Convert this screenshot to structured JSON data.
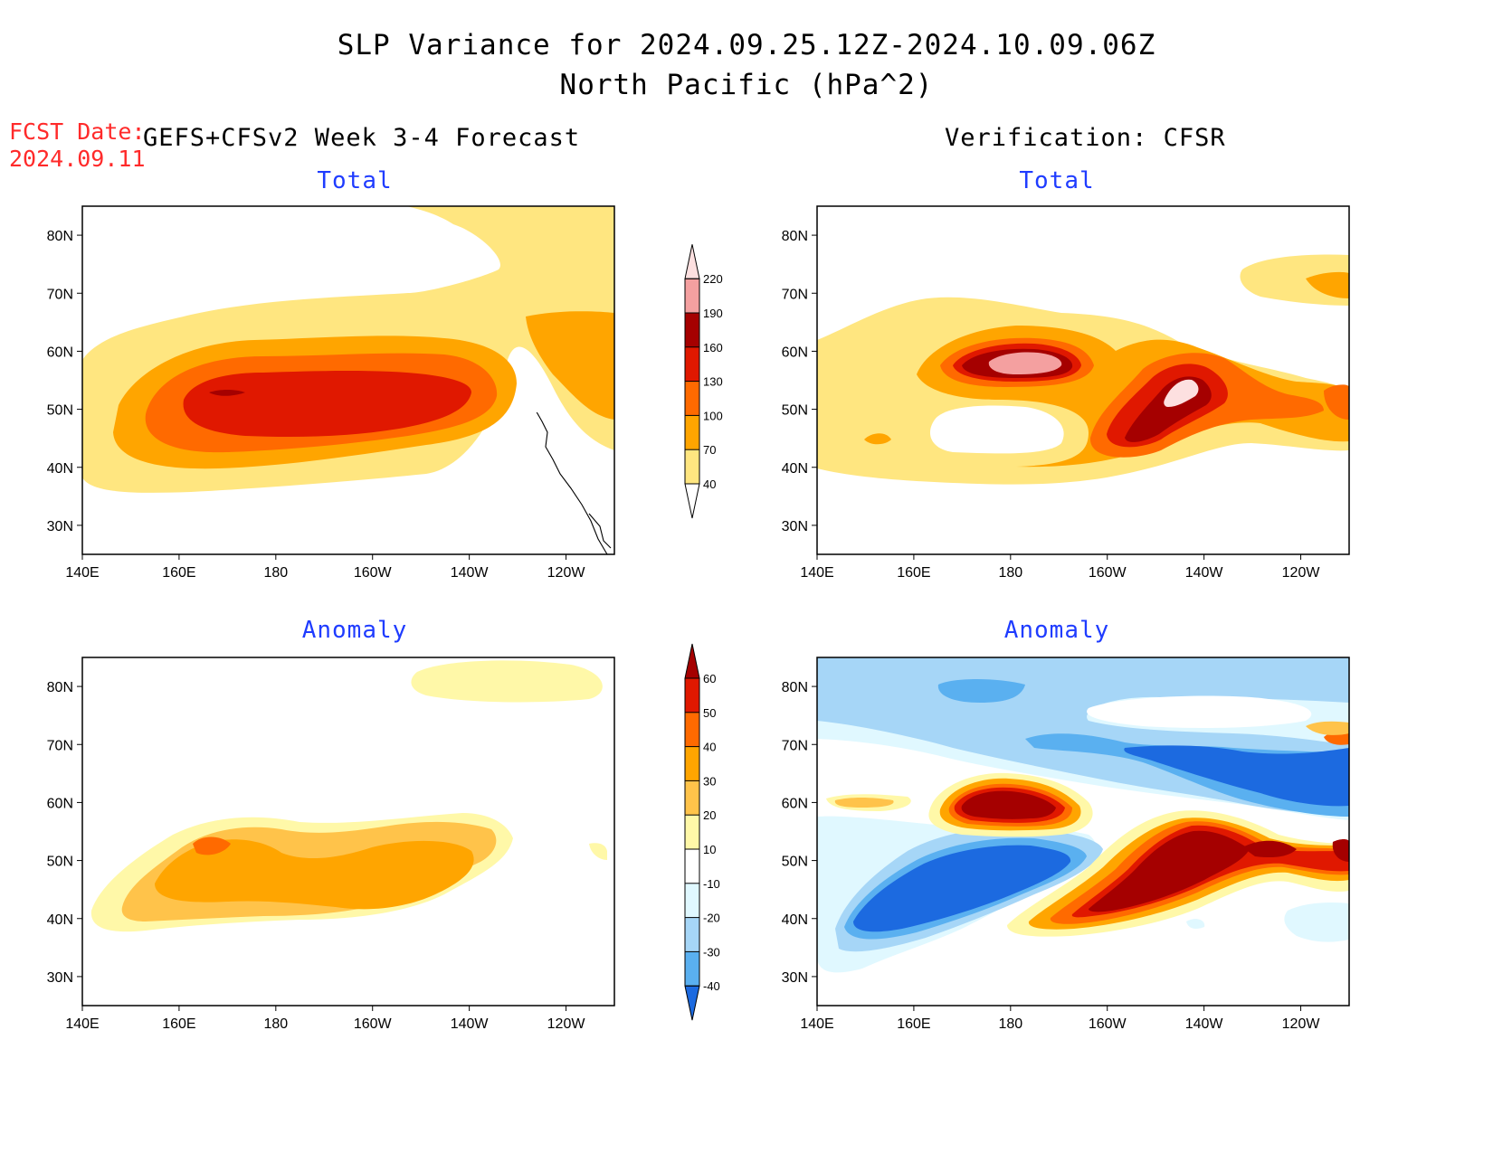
{
  "header": {
    "title_line1": "SLP Variance for 2024.09.25.12Z-2024.10.09.06Z",
    "title_line2": "North Pacific (hPa^2)"
  },
  "fcst": {
    "label": "FCST Date:",
    "date": "2024.09.11"
  },
  "columns": {
    "forecast": "GEFS+CFSv2 Week 3-4 Forecast",
    "verification": "Verification: CFSR"
  },
  "panels": {
    "fc_total": "Total",
    "ver_total": "Total",
    "fc_anom": "Anomaly",
    "ver_anom": "Anomaly"
  },
  "axes": {
    "lat_labels": [
      "80N",
      "70N",
      "60N",
      "50N",
      "40N",
      "30N"
    ],
    "lat_values": [
      80,
      70,
      60,
      50,
      40,
      30
    ],
    "lon_labels": [
      "140E",
      "160E",
      "180",
      "160W",
      "140W",
      "120W"
    ],
    "lon_values": [
      140,
      160,
      180,
      200,
      220,
      240
    ],
    "lat_range": [
      25,
      85
    ],
    "lon_range": [
      140,
      250
    ]
  },
  "colorbar_total": {
    "levels": [
      "40",
      "70",
      "100",
      "130",
      "160",
      "190",
      "220"
    ],
    "colors": [
      "#ffe680",
      "#ffa500",
      "#ff6a00",
      "#e01800",
      "#a50000",
      "#f4a0a0",
      "#fde0e0"
    ]
  },
  "colorbar_anom": {
    "levels": [
      "60",
      "50",
      "40",
      "30",
      "20",
      "10",
      "-10",
      "-20",
      "-30",
      "-40"
    ],
    "colors": [
      "#a50000",
      "#e01800",
      "#ff6a00",
      "#ffa500",
      "#ffc34a",
      "#fff8a8",
      "#ffffff",
      "#e0f8ff",
      "#a6d6f7",
      "#5ab0f0",
      "#1c6ae0"
    ]
  }
}
